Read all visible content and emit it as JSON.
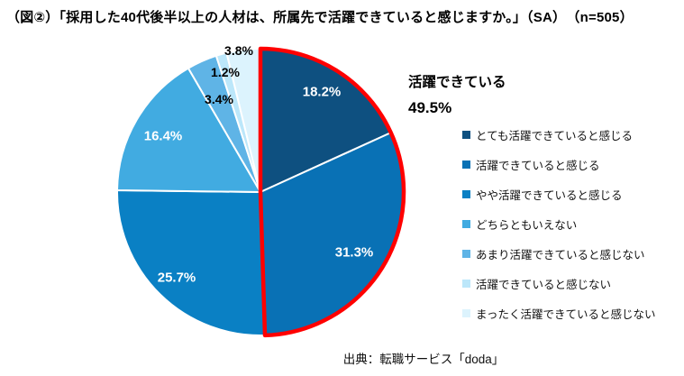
{
  "title": "（図②）「採用した40代後半以上の人材は、所属先で活躍できていると感じますか。」（SA）　（n=505）",
  "source": "出典：転職サービス「doda」",
  "chart_data": {
    "type": "pie",
    "title": "採用した40代後半以上の人材は、所属先で活躍できていると感じますか。（SA）（n=505）",
    "n": 505,
    "categories": [
      "とても活躍できていると感じる",
      "活躍できていると感じる",
      "やや活躍できていると感じる",
      "どちらともいえない",
      "あまり活躍できていると感じない",
      "活躍できていると感じない",
      "まったく活躍できていると感じない"
    ],
    "values": [
      18.2,
      31.3,
      25.7,
      16.4,
      3.4,
      1.2,
      3.8
    ],
    "display_labels": [
      "18.2%",
      "31.3%",
      "25.7%",
      "16.4%",
      "3.4%",
      "1.2%",
      "3.8%"
    ],
    "colors": [
      "#0E5080",
      "#0971B5",
      "#0A80C4",
      "#41ABE1",
      "#5FB4E6",
      "#BCE7FA",
      "#DCF3FD"
    ],
    "start_angle_deg": 0,
    "direction": "clockwise",
    "legend_position": "right",
    "slice_border_color": "#FFFFFF",
    "highlight": {
      "label": "活躍できている",
      "value_label": "49.5%",
      "value": 49.5,
      "slices": [
        0,
        1
      ],
      "color": "#FF0000"
    }
  }
}
